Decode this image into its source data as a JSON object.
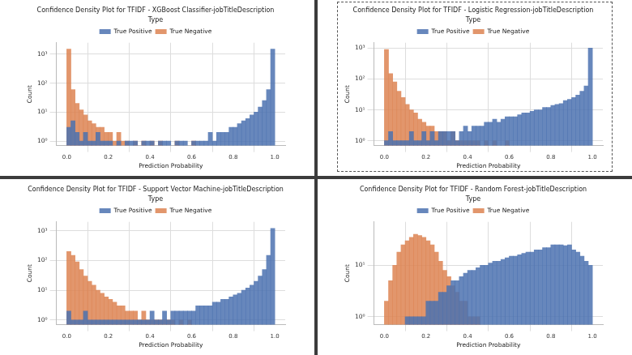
{
  "chart_data": [
    {
      "type": "histogram",
      "title": "Confidence Density Plot for TFIDF - XGBoost Classifier-jobTitleDescription",
      "x_label": "Prediction Probability",
      "y_label": "Count",
      "legend_title": "Type",
      "bins": [
        0,
        0.02,
        0.04,
        0.06,
        0.08,
        0.1,
        0.12,
        0.14,
        0.16,
        0.18,
        0.2,
        0.22,
        0.24,
        0.26,
        0.28,
        0.3,
        0.32,
        0.34,
        0.36,
        0.38,
        0.4,
        0.42,
        0.44,
        0.46,
        0.48,
        0.5,
        0.52,
        0.54,
        0.56,
        0.58,
        0.6,
        0.62,
        0.64,
        0.66,
        0.68,
        0.7,
        0.72,
        0.74,
        0.76,
        0.78,
        0.8,
        0.82,
        0.84,
        0.86,
        0.88,
        0.9,
        0.92,
        0.94,
        0.96,
        0.98,
        1
      ],
      "series": [
        {
          "name": "True Positive",
          "color": "#4c72b0",
          "values": [
            3,
            5,
            2,
            1,
            2,
            1,
            1,
            2,
            1,
            1,
            1,
            null,
            1,
            null,
            1,
            1,
            1,
            null,
            1,
            1,
            1,
            null,
            1,
            1,
            1,
            null,
            1,
            1,
            1,
            null,
            1,
            1,
            1,
            1,
            2,
            1,
            2,
            2,
            2,
            3,
            3,
            4,
            5,
            6,
            8,
            10,
            15,
            25,
            60,
            1500
          ]
        },
        {
          "name": "True Negative",
          "color": "#dd8452",
          "values": [
            1500,
            60,
            20,
            12,
            8,
            5,
            4,
            3,
            3,
            2,
            2,
            1,
            2,
            1,
            1,
            null,
            1,
            null,
            1,
            null,
            1,
            null,
            1,
            null,
            null,
            null,
            1,
            null,
            null,
            null,
            1,
            null,
            null,
            null,
            null,
            null,
            null,
            null,
            null,
            null,
            null,
            null,
            null,
            null,
            null,
            null,
            null,
            null,
            null,
            null
          ]
        }
      ],
      "xlim": [
        -0.05,
        1.05
      ],
      "xticks": [
        {
          "value": 0,
          "label": "0.0"
        },
        0.2,
        0.4,
        0.6,
        0.8,
        {
          "value": 1,
          "label": "1.0"
        }
      ],
      "ylim": [
        0.7,
        2500
      ],
      "yticks": [
        {
          "value": 1,
          "label": "10⁰"
        },
        {
          "value": 10,
          "label": "10¹"
        },
        {
          "value": 100,
          "label": "10²"
        },
        {
          "value": 1000,
          "label": "10³"
        }
      ],
      "log": "y",
      "grid": true,
      "legend": "top"
    },
    {
      "type": "histogram",
      "title": "Confidence Density Plot for TFIDF - Logistic Regression-jobTitleDescription",
      "x_label": "Prediction Probability",
      "y_label": "Count",
      "legend_title": "Type",
      "bins": [
        0,
        0.02,
        0.04,
        0.06,
        0.08,
        0.1,
        0.12,
        0.14,
        0.16,
        0.18,
        0.2,
        0.22,
        0.24,
        0.26,
        0.28,
        0.3,
        0.32,
        0.34,
        0.36,
        0.38,
        0.4,
        0.42,
        0.44,
        0.46,
        0.48,
        0.5,
        0.52,
        0.54,
        0.56,
        0.58,
        0.6,
        0.62,
        0.64,
        0.66,
        0.68,
        0.7,
        0.72,
        0.74,
        0.76,
        0.78,
        0.8,
        0.82,
        0.84,
        0.86,
        0.88,
        0.9,
        0.92,
        0.94,
        0.96,
        0.98,
        1
      ],
      "series": [
        {
          "name": "True Positive",
          "color": "#4c72b0",
          "values": [
            1,
            2,
            1,
            1,
            1,
            1,
            2,
            1,
            1,
            2,
            1,
            2,
            1,
            2,
            2,
            2,
            2,
            1,
            2,
            3,
            2,
            3,
            3,
            3,
            4,
            4,
            5,
            4,
            5,
            6,
            6,
            6,
            7,
            8,
            8,
            9,
            10,
            10,
            12,
            12,
            14,
            15,
            16,
            20,
            22,
            25,
            30,
            40,
            60,
            1000
          ]
        },
        {
          "name": "True Negative",
          "color": "#dd8452",
          "values": [
            900,
            150,
            80,
            40,
            25,
            15,
            10,
            8,
            5,
            4,
            3,
            3,
            2,
            2,
            2,
            1,
            2,
            1,
            1,
            1,
            1,
            1,
            1,
            null,
            1,
            null,
            1,
            null,
            null,
            1,
            null,
            null,
            null,
            null,
            null,
            null,
            null,
            null,
            null,
            null,
            null,
            null,
            null,
            null,
            null,
            null,
            null,
            null,
            null,
            null
          ]
        }
      ],
      "xlim": [
        -0.05,
        1.05
      ],
      "xticks": [
        {
          "value": 0,
          "label": "0.0"
        },
        0.2,
        0.4,
        0.6,
        0.8,
        {
          "value": 1,
          "label": "1.0"
        }
      ],
      "ylim": [
        0.7,
        1500
      ],
      "yticks": [
        {
          "value": 1,
          "label": "10⁰"
        },
        {
          "value": 10,
          "label": "10¹"
        },
        {
          "value": 100,
          "label": "10²"
        },
        {
          "value": 1000,
          "label": "10³"
        }
      ],
      "log": "y",
      "grid": true,
      "legend": "top"
    },
    {
      "type": "histogram",
      "title": "Confidence Density Plot for TFIDF - Support Vector Machine-jobTitleDescription",
      "x_label": "Prediction Probability",
      "y_label": "Count",
      "legend_title": "Type",
      "bins": [
        0,
        0.02,
        0.04,
        0.06,
        0.08,
        0.1,
        0.12,
        0.14,
        0.16,
        0.18,
        0.2,
        0.22,
        0.24,
        0.26,
        0.28,
        0.3,
        0.32,
        0.34,
        0.36,
        0.38,
        0.4,
        0.42,
        0.44,
        0.46,
        0.48,
        0.5,
        0.52,
        0.54,
        0.56,
        0.58,
        0.6,
        0.62,
        0.64,
        0.66,
        0.68,
        0.7,
        0.72,
        0.74,
        0.76,
        0.78,
        0.8,
        0.82,
        0.84,
        0.86,
        0.88,
        0.9,
        0.92,
        0.94,
        0.96,
        0.98,
        1
      ],
      "series": [
        {
          "name": "True Positive",
          "color": "#4c72b0",
          "values": [
            2,
            1,
            1,
            1,
            2,
            1,
            1,
            1,
            1,
            1,
            1,
            1,
            1,
            1,
            1,
            1,
            1,
            1,
            1,
            1,
            2,
            1,
            1,
            2,
            1,
            2,
            2,
            2,
            2,
            2,
            2,
            3,
            3,
            3,
            3,
            4,
            4,
            5,
            5,
            6,
            7,
            8,
            10,
            12,
            15,
            20,
            30,
            50,
            150,
            1200
          ]
        },
        {
          "name": "True Negative",
          "color": "#dd8452",
          "values": [
            200,
            150,
            90,
            50,
            30,
            20,
            15,
            10,
            8,
            6,
            5,
            4,
            3,
            3,
            2,
            2,
            2,
            1,
            2,
            1,
            1,
            1,
            1,
            1,
            1,
            1,
            null,
            1,
            null,
            1,
            null,
            null,
            null,
            null,
            null,
            null,
            null,
            null,
            null,
            null,
            null,
            null,
            null,
            null,
            null,
            null,
            null,
            null,
            null,
            null
          ]
        }
      ],
      "xlim": [
        -0.05,
        1.05
      ],
      "xticks": [
        {
          "value": 0,
          "label": "0.0"
        },
        0.2,
        0.4,
        0.6,
        0.8,
        {
          "value": 1,
          "label": "1.0"
        }
      ],
      "ylim": [
        0.7,
        2000
      ],
      "yticks": [
        {
          "value": 1,
          "label": "10⁰"
        },
        {
          "value": 10,
          "label": "10¹"
        },
        {
          "value": 100,
          "label": "10²"
        },
        {
          "value": 1000,
          "label": "10³"
        }
      ],
      "log": "y",
      "grid": true,
      "legend": "top"
    },
    {
      "type": "histogram",
      "title": "Confidence Density Plot for TFIDF - Random Forest-jobTitleDescription",
      "x_label": "Prediction Probability",
      "y_label": "Count",
      "legend_title": "Type",
      "bins": [
        0,
        0.02,
        0.04,
        0.06,
        0.08,
        0.1,
        0.12,
        0.14,
        0.16,
        0.18,
        0.2,
        0.22,
        0.24,
        0.26,
        0.28,
        0.3,
        0.32,
        0.34,
        0.36,
        0.38,
        0.4,
        0.42,
        0.44,
        0.46,
        0.48,
        0.5,
        0.52,
        0.54,
        0.56,
        0.58,
        0.6,
        0.62,
        0.64,
        0.66,
        0.68,
        0.7,
        0.72,
        0.74,
        0.76,
        0.78,
        0.8,
        0.82,
        0.84,
        0.86,
        0.88,
        0.9,
        0.92,
        0.94,
        0.96,
        0.98,
        1
      ],
      "series": [
        {
          "name": "True Positive",
          "color": "#4c72b0",
          "values": [
            null,
            null,
            null,
            null,
            null,
            1,
            1,
            1,
            1,
            1,
            2,
            2,
            2,
            3,
            3,
            4,
            5,
            5,
            6,
            7,
            8,
            8,
            9,
            10,
            10,
            11,
            12,
            12,
            13,
            14,
            15,
            15,
            16,
            17,
            18,
            18,
            20,
            20,
            22,
            22,
            25,
            25,
            25,
            24,
            25,
            20,
            18,
            15,
            12,
            10
          ]
        },
        {
          "name": "True Negative",
          "color": "#dd8452",
          "values": [
            2,
            5,
            10,
            18,
            25,
            30,
            35,
            40,
            38,
            35,
            30,
            25,
            18,
            12,
            8,
            6,
            4,
            3,
            2,
            2,
            1,
            1,
            1,
            null,
            null,
            null,
            null,
            null,
            null,
            null,
            null,
            null,
            null,
            null,
            null,
            null,
            null,
            null,
            null,
            null,
            null,
            null,
            null,
            null,
            null,
            null,
            null,
            null,
            null,
            null
          ]
        }
      ],
      "xlim": [
        -0.05,
        1.05
      ],
      "xticks": [
        {
          "value": 0,
          "label": "0.0"
        },
        0.2,
        0.4,
        0.6,
        0.8,
        {
          "value": 1,
          "label": "1.0"
        }
      ],
      "ylim": [
        0.7,
        70
      ],
      "yticks": [
        {
          "value": 1,
          "label": "10⁰"
        },
        {
          "value": 10,
          "label": "10¹"
        }
      ],
      "log": "y",
      "grid": true,
      "legend": "top"
    }
  ]
}
